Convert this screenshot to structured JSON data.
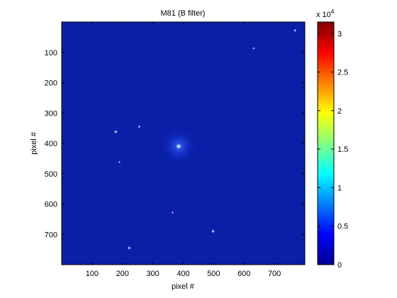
{
  "chart_data": {
    "type": "heatmap",
    "title": "M81 (B filter)",
    "xlabel": "pixel #",
    "ylabel": "pixel #",
    "xlim": [
      0,
      800
    ],
    "ylim": [
      800,
      0
    ],
    "x_ticks": [
      "100",
      "200",
      "300",
      "400",
      "500",
      "600",
      "700"
    ],
    "y_ticks": [
      "100",
      "200",
      "300",
      "400",
      "500",
      "600",
      "700"
    ],
    "colorbar": {
      "colormap": "jet",
      "range": [
        0,
        31500
      ],
      "ticks": [
        "0",
        "0.5",
        "1",
        "1.5",
        "2",
        "2.5",
        "3"
      ],
      "multiplier": "x 10",
      "exponent": "4"
    },
    "background_color": "#0a1fa8",
    "features": [
      {
        "x": 385,
        "y": 410,
        "intensity": 1.0
      },
      {
        "x": 178,
        "y": 362,
        "intensity": 0.7
      },
      {
        "x": 255,
        "y": 345,
        "intensity": 0.45
      },
      {
        "x": 498,
        "y": 690,
        "intensity": 0.7
      },
      {
        "x": 222,
        "y": 745,
        "intensity": 0.65
      },
      {
        "x": 768,
        "y": 28,
        "intensity": 0.5
      },
      {
        "x": 632,
        "y": 87,
        "intensity": 0.35
      },
      {
        "x": 365,
        "y": 628,
        "intensity": 0.3
      },
      {
        "x": 190,
        "y": 462,
        "intensity": 0.3
      }
    ]
  }
}
